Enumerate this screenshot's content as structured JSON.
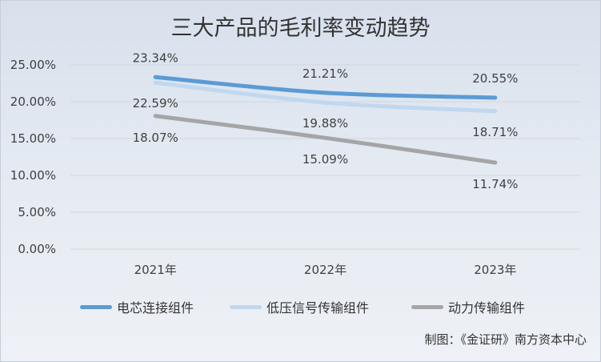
{
  "chart_data": {
    "type": "line",
    "title": "三大产品的毛利率变动趋势",
    "categories": [
      "2021年",
      "2022年",
      "2023年"
    ],
    "ylim": [
      0,
      25
    ],
    "yticks": [
      {
        "value": 0,
        "label": "0.00%"
      },
      {
        "value": 5,
        "label": "5.00%"
      },
      {
        "value": 10,
        "label": "10.00%"
      },
      {
        "value": 15,
        "label": "15.00%"
      },
      {
        "value": 20,
        "label": "20.00%"
      },
      {
        "value": 25,
        "label": "25.00%"
      }
    ],
    "grid": true,
    "smooth": true,
    "legend": "bottom",
    "series": [
      {
        "name": "电芯连接组件",
        "values": [
          23.34,
          21.21,
          20.55
        ],
        "labels": [
          "23.34%",
          "21.21%",
          "20.55%"
        ],
        "color": "#5b9bd5"
      },
      {
        "name": "低压信号传输组件",
        "values": [
          22.59,
          19.88,
          18.71
        ],
        "labels": [
          "22.59%",
          "19.88%",
          "18.71%"
        ],
        "color": "#c0d8ef"
      },
      {
        "name": "动力传输组件",
        "values": [
          18.07,
          15.09,
          11.74
        ],
        "labels": [
          "18.07%",
          "15.09%",
          "11.74%"
        ],
        "color": "#a5a5a5"
      }
    ]
  },
  "credit": "制图：《金证研》南方资本中心"
}
